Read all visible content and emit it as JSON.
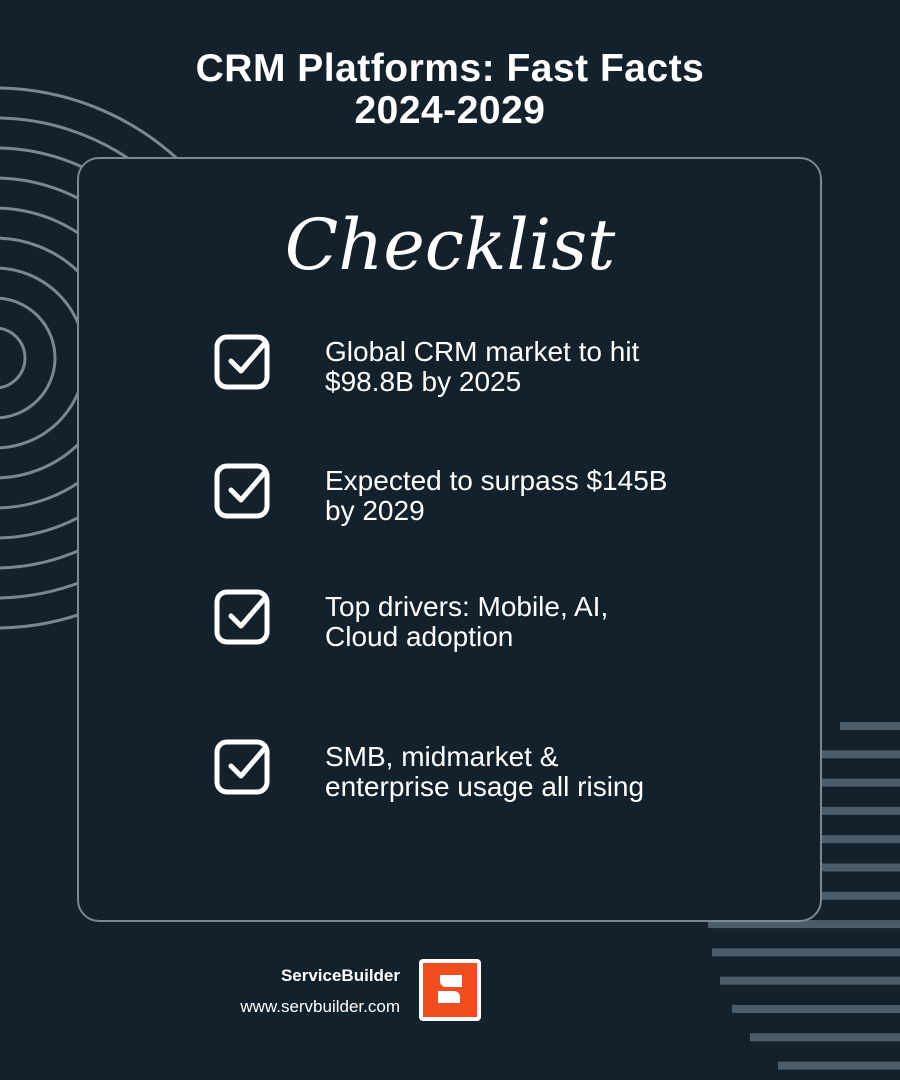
{
  "title_line1": "CRM Platforms: Fast Facts",
  "title_line2": "2024-2029",
  "heading": "Checklist",
  "items": [
    {
      "line1": "Global CRM market to hit",
      "line2": "$98.8B by 2025",
      "icon": "checkbox-checked-icon"
    },
    {
      "line1": "Expected to surpass $145B",
      "line2": "by 2029",
      "icon": "checkbox-checked-icon"
    },
    {
      "line1": "Top drivers: Mobile, AI,",
      "line2": "Cloud adoption",
      "icon": "checkbox-checked-icon"
    },
    {
      "line1": "SMB, midmarket &",
      "line2": "enterprise usage all rising",
      "icon": "checkbox-checked-icon"
    }
  ],
  "brand": {
    "name": "ServiceBuilder",
    "url": "www.servbuilder.com",
    "logo_color": "#f04e1f"
  },
  "colors": {
    "background": "#13212d",
    "decor_lines": "#7b8792",
    "stripes": "#4c5c68"
  }
}
